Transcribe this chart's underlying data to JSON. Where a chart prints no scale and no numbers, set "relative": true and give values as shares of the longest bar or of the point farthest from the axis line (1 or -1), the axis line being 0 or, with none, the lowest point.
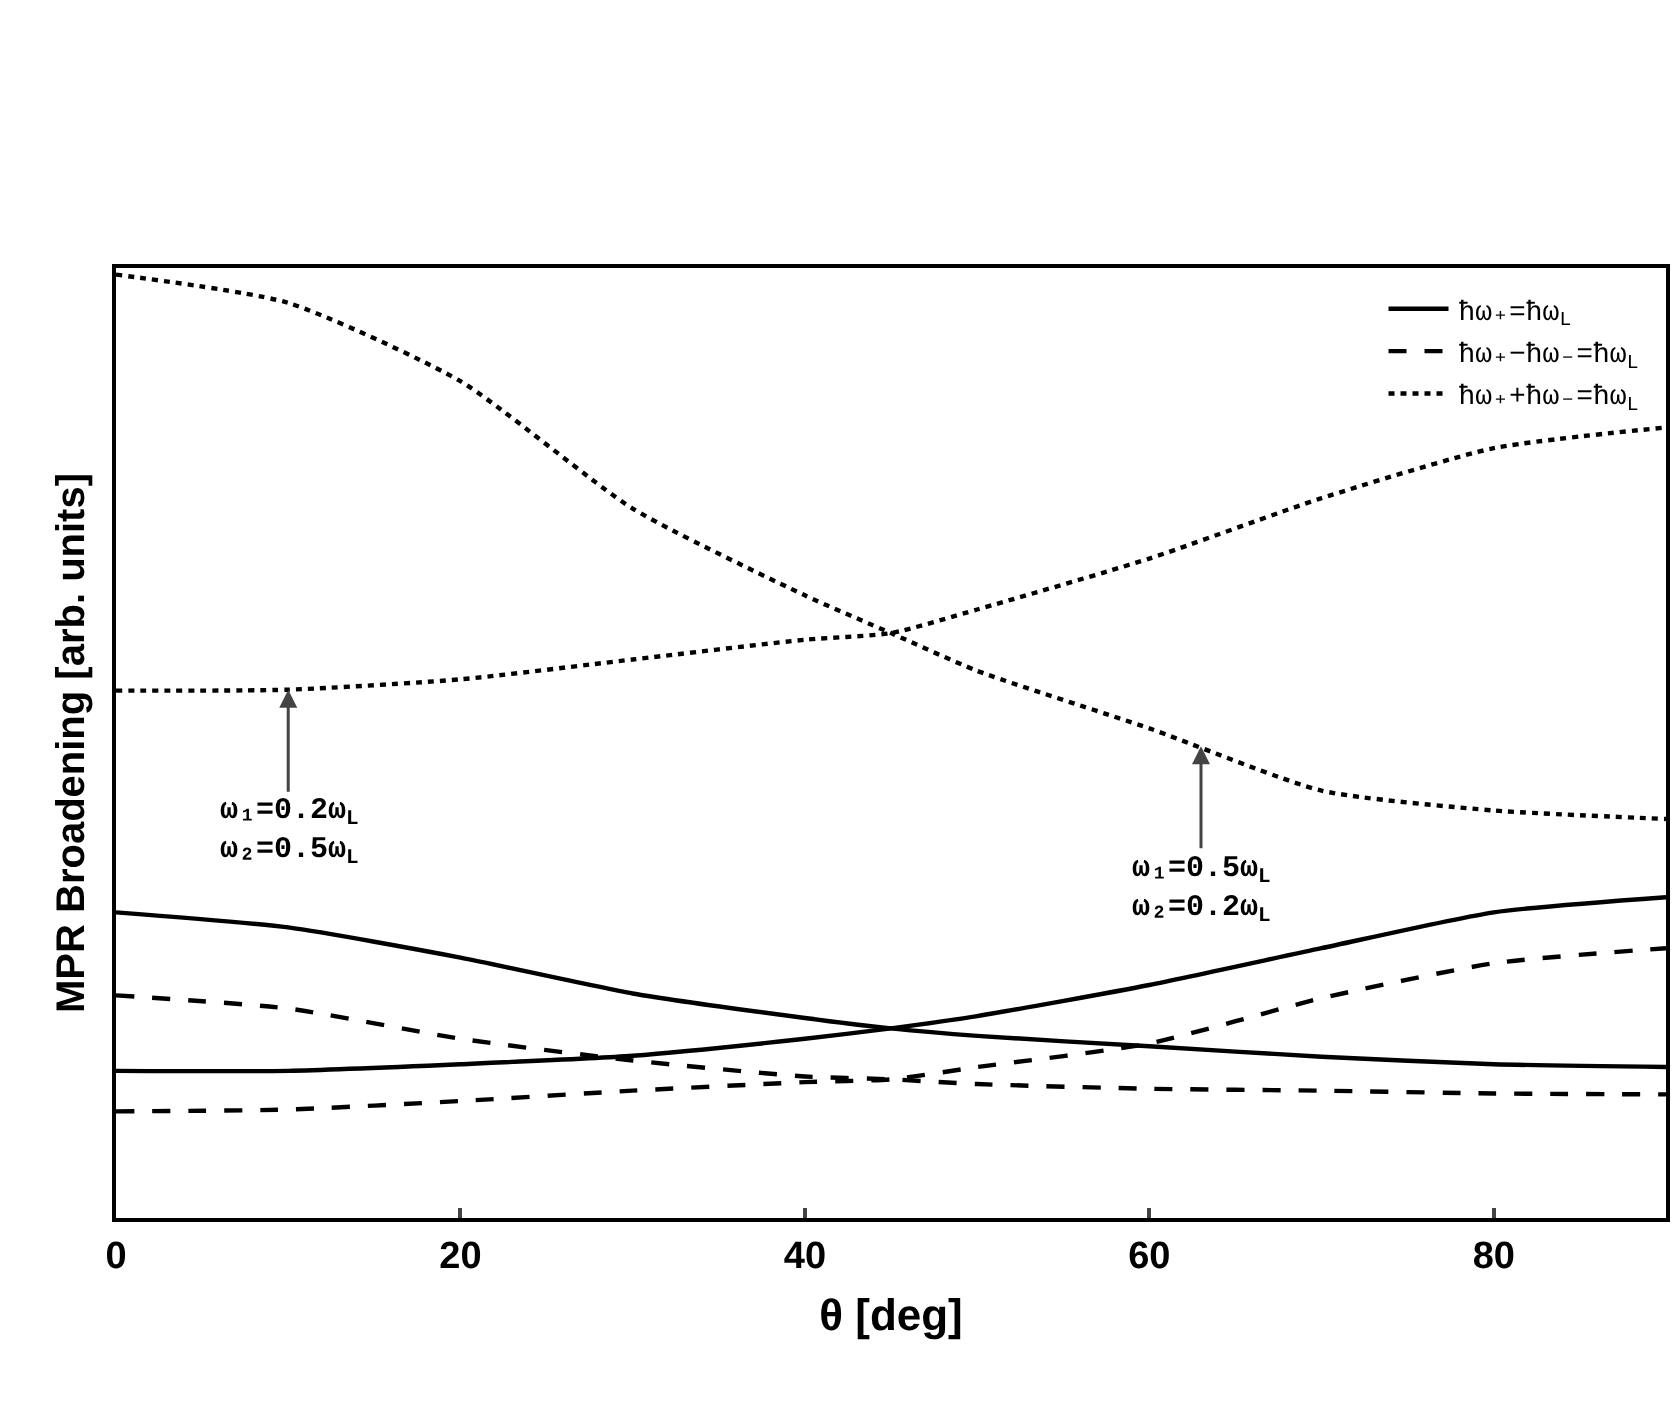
{
  "chart_data": {
    "type": "line",
    "xlabel": "θ [deg]",
    "ylabel": "MPR Broadening [arb. units]",
    "relative": true,
    "x": [
      0,
      10,
      20,
      30,
      40,
      45,
      50,
      60,
      70,
      80,
      90
    ],
    "xlim": [
      0,
      90
    ],
    "xticks": [
      0,
      20,
      40,
      60,
      80
    ],
    "grid": false,
    "legend": "top right",
    "marker": "none",
    "series": [
      {
        "name": "ħω₊=ħω$_{L}$",
        "color": "#000000",
        "line_style": "solid",
        "values": [
          0.324,
          0.308,
          0.276,
          0.238,
          0.212,
          0.201,
          0.193,
          0.182,
          0.171,
          0.163,
          0.16
        ]
      },
      {
        "color": "#000000",
        "line_style": "solid",
        "values": [
          0.156,
          0.156,
          0.163,
          0.172,
          0.19,
          0.201,
          0.214,
          0.247,
          0.286,
          0.324,
          0.34
        ]
      },
      {
        "name": "ħω₊−ħω₋=ħω$_{L}$",
        "color": "#000000",
        "line_style": "dashed",
        "values": [
          0.236,
          0.222,
          0.19,
          0.167,
          0.15,
          0.147,
          0.142,
          0.137,
          0.135,
          0.132,
          0.131
        ]
      },
      {
        "color": "#000000",
        "line_style": "dashed",
        "values": [
          0.113,
          0.115,
          0.124,
          0.135,
          0.144,
          0.147,
          0.16,
          0.185,
          0.233,
          0.27,
          0.286
        ]
      },
      {
        "name": "ħω₊+ħω₋=ħω$_{L}$",
        "color": "#000000",
        "line_style": "dotted",
        "values": [
          1.0,
          0.97,
          0.887,
          0.752,
          0.66,
          0.62,
          0.58,
          0.519,
          0.453,
          0.432,
          0.423
        ]
      },
      {
        "color": "#000000",
        "line_style": "dotted",
        "values": [
          0.559,
          0.56,
          0.571,
          0.592,
          0.613,
          0.62,
          0.645,
          0.699,
          0.763,
          0.816,
          0.838
        ]
      }
    ],
    "annotations": [
      {
        "text": "ω₁=0.2ω$_{L}$\nω₂=0.5ω$_{L}$",
        "x": 10,
        "y": 0.56
      },
      {
        "text": "ω₁=0.5ω$_{L}$\nω₂=0.2ω$_{L}$",
        "x": 63,
        "y": 0.5
      }
    ]
  }
}
